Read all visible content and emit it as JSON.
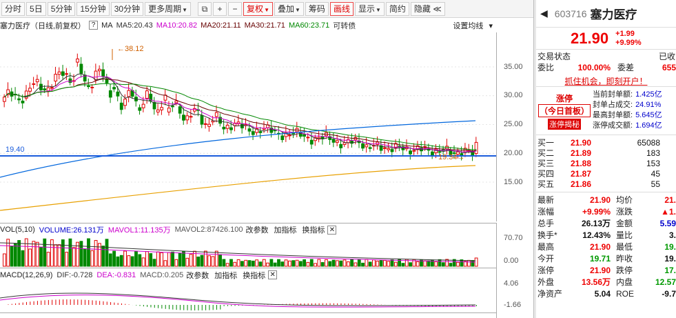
{
  "toolbar": {
    "periods": [
      "分时",
      "5日",
      "5分钟",
      "15分钟",
      "30分钟",
      "更多周期"
    ],
    "fuquan": "复权",
    "diejia": "叠加",
    "chouma": "筹码",
    "huaxian": "画线",
    "xianshi": "显示",
    "jianyue": "简约",
    "yincang": "隐藏"
  },
  "indicators": {
    "stock": "塞力医疗（日线,前复权）",
    "ma": "MA",
    "ma5": "MA5:20.43",
    "ma10": "MA10:20.82",
    "ma20": "MA20:21.11",
    "ma30": "MA30:21.71",
    "ma60": "MA60:23.71",
    "kzz": "可转债",
    "setting": "设置均线"
  },
  "chart": {
    "hi_label": "38.12",
    "lo_label": "19.34",
    "line_label": "19.40",
    "price_ticks": [
      "35.00",
      "30.00",
      "25.00",
      "20.00",
      "15.00"
    ],
    "vol_ticks": [
      "70.70",
      "0.00"
    ],
    "macd_ticks": [
      "4.06",
      "-1.66"
    ],
    "colors": {
      "up": "#e00000",
      "down": "#008800",
      "ma5": "#333333",
      "ma10": "#cc00cc",
      "ma20": "#660000",
      "ma30": "#008800",
      "ma60": "#0066dd",
      "ma120": "#e8a000",
      "hline": "#1a5cdc"
    }
  },
  "vol": {
    "name": "VOL(5,10)",
    "volume": "VOLUME:26.131万",
    "mavol1": "MAVOL1:11.135万",
    "mavol2": "MAVOL2:87426.100",
    "actions": [
      "改参数",
      "加指标",
      "换指标"
    ],
    "close": "✕"
  },
  "macd": {
    "name": "MACD(12,26,9)",
    "dif": "DIF:-0.728",
    "dea": "DEA:-0.831",
    "val": "MACD:0.205",
    "actions": [
      "改参数",
      "加指标",
      "换指标"
    ],
    "close": "✕"
  },
  "quote": {
    "code": "603716",
    "name": "塞力医疗",
    "price": "21.90",
    "change": "+1.99",
    "pct": "+9.99%",
    "status_label": "交易状态",
    "status_val": "已收",
    "weibi_label": "委比",
    "weibi": "100.00%",
    "weicha_label": "委差",
    "weicha": "655",
    "promo": "抓住机会，即刻开户！",
    "limit_title": "涨停",
    "limit_sub": "（今日首板）",
    "limit_tag": "涨停揭秘",
    "limit_rows": [
      [
        "当前封单额:",
        "1.425亿"
      ],
      [
        "封单占成交:",
        "24.91%"
      ],
      [
        "最高封单额:",
        "5.645亿"
      ],
      [
        "涨停成交额:",
        "1.694亿"
      ]
    ],
    "buy": [
      [
        "买一",
        "21.90",
        "65088"
      ],
      [
        "买二",
        "21.89",
        "183"
      ],
      [
        "买三",
        "21.88",
        "153"
      ],
      [
        "买四",
        "21.87",
        "45"
      ],
      [
        "买五",
        "21.86",
        "55"
      ]
    ],
    "stats": [
      [
        "最新",
        "21.90",
        "均价",
        "21."
      ],
      [
        "涨幅",
        "+9.99%",
        "涨跌",
        "▲1."
      ],
      [
        "总手",
        "26.13万",
        "金额",
        "5.59"
      ],
      [
        "换手*",
        "12.43%",
        "量比",
        "3."
      ],
      [
        "最高",
        "21.90",
        "最低",
        "19."
      ],
      [
        "今开",
        "19.71",
        "昨收",
        "19."
      ],
      [
        "涨停",
        "21.90",
        "跌停",
        "17."
      ],
      [
        "外盘",
        "13.56万",
        "内盘",
        "12.57"
      ],
      [
        "净资产",
        "5.04",
        "ROE",
        "-9.7"
      ]
    ]
  }
}
